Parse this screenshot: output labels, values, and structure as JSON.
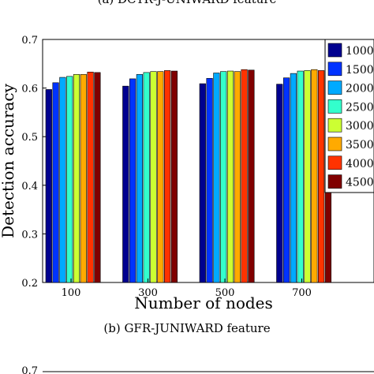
{
  "top_caption_fragment": "(a) DCTR-J-UNIWARD feature",
  "caption": "(b)  GFR-JUNIWARD feature",
  "bottom_tick_fragment": "0.7",
  "chart_data": {
    "type": "bar",
    "categories": [
      "100",
      "300",
      "500",
      "700"
    ],
    "series": [
      {
        "name": "1000",
        "color": "#00008f",
        "values": [
          0.597,
          0.604,
          0.609,
          0.608
        ]
      },
      {
        "name": "1500",
        "color": "#0033ff",
        "values": [
          0.611,
          0.619,
          0.62,
          0.621
        ]
      },
      {
        "name": "2000",
        "color": "#00aaff",
        "values": [
          0.622,
          0.628,
          0.631,
          0.63
        ]
      },
      {
        "name": "2500",
        "color": "#33ffcc",
        "values": [
          0.624,
          0.632,
          0.634,
          0.635
        ]
      },
      {
        "name": "3000",
        "color": "#ccff33",
        "values": [
          0.628,
          0.634,
          0.635,
          0.636
        ]
      },
      {
        "name": "3500",
        "color": "#ffaa00",
        "values": [
          0.628,
          0.634,
          0.634,
          0.638
        ]
      },
      {
        "name": "4000",
        "color": "#ff3300",
        "values": [
          0.633,
          0.636,
          0.638,
          0.636
        ]
      },
      {
        "name": "4500",
        "color": "#800000",
        "values": [
          0.632,
          0.635,
          0.637,
          0.636
        ]
      }
    ],
    "xlabel": "Number of nodes",
    "ylabel": "Detection accuracy",
    "ylim": [
      0.2,
      0.7
    ],
    "yticks": [
      "0.2",
      "0.3",
      "0.4",
      "0.5",
      "0.6",
      "0.7"
    ],
    "grid": false,
    "legend_position": "top-right"
  }
}
